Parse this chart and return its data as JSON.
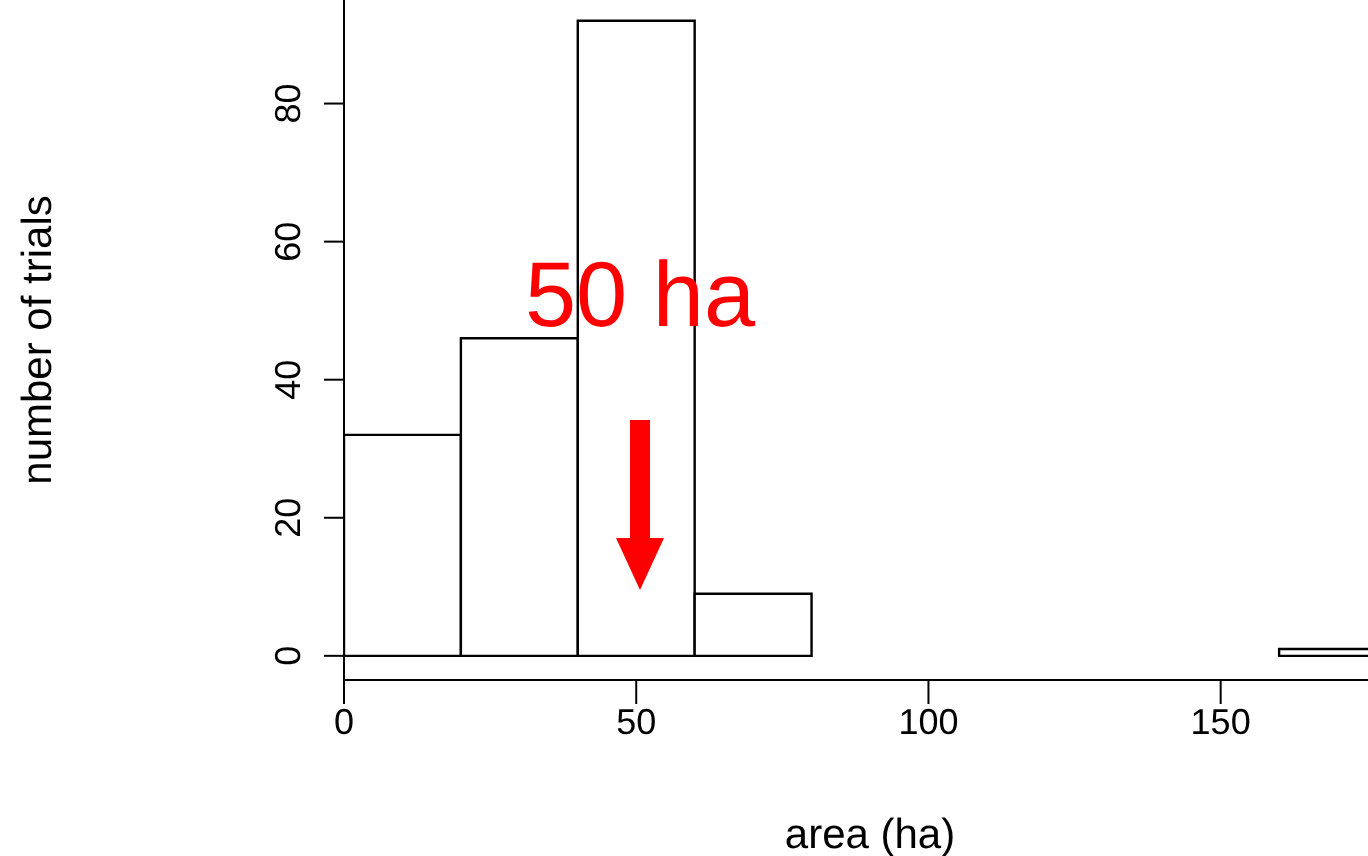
{
  "chart_data": {
    "type": "histogram",
    "xlabel": "area (ha)",
    "ylabel": "number of trials",
    "bins": [
      0,
      20,
      40,
      60,
      80,
      100,
      120,
      140,
      160,
      180
    ],
    "values": [
      32,
      46,
      92,
      9,
      0,
      0,
      0,
      0,
      1
    ],
    "color": "#ffffff",
    "xlim": [
      0,
      180
    ],
    "xticks": [
      0,
      50,
      100,
      150
    ],
    "ylim": [
      -3.5,
      95
    ],
    "yticks": [
      0,
      20,
      40,
      60,
      80
    ],
    "grid": false,
    "annotations": [
      "50 ha"
    ]
  }
}
